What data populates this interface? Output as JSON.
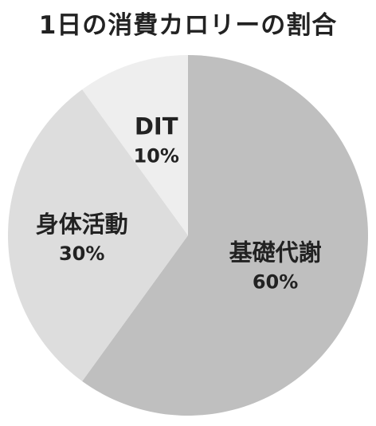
{
  "chart_data": {
    "type": "pie",
    "title": "1日の消費カロリーの割合",
    "slices": [
      {
        "label": "基礎代謝",
        "value": 60,
        "value_label": "60%",
        "color": "#bfbfbf"
      },
      {
        "label": "身体活動",
        "value": 30,
        "value_label": "30%",
        "color": "#dddddd"
      },
      {
        "label": "DIT",
        "value": 10,
        "value_label": "10%",
        "color": "#eeeeee"
      }
    ],
    "start_angle_deg": 0,
    "direction": "clockwise",
    "legend": "none"
  }
}
